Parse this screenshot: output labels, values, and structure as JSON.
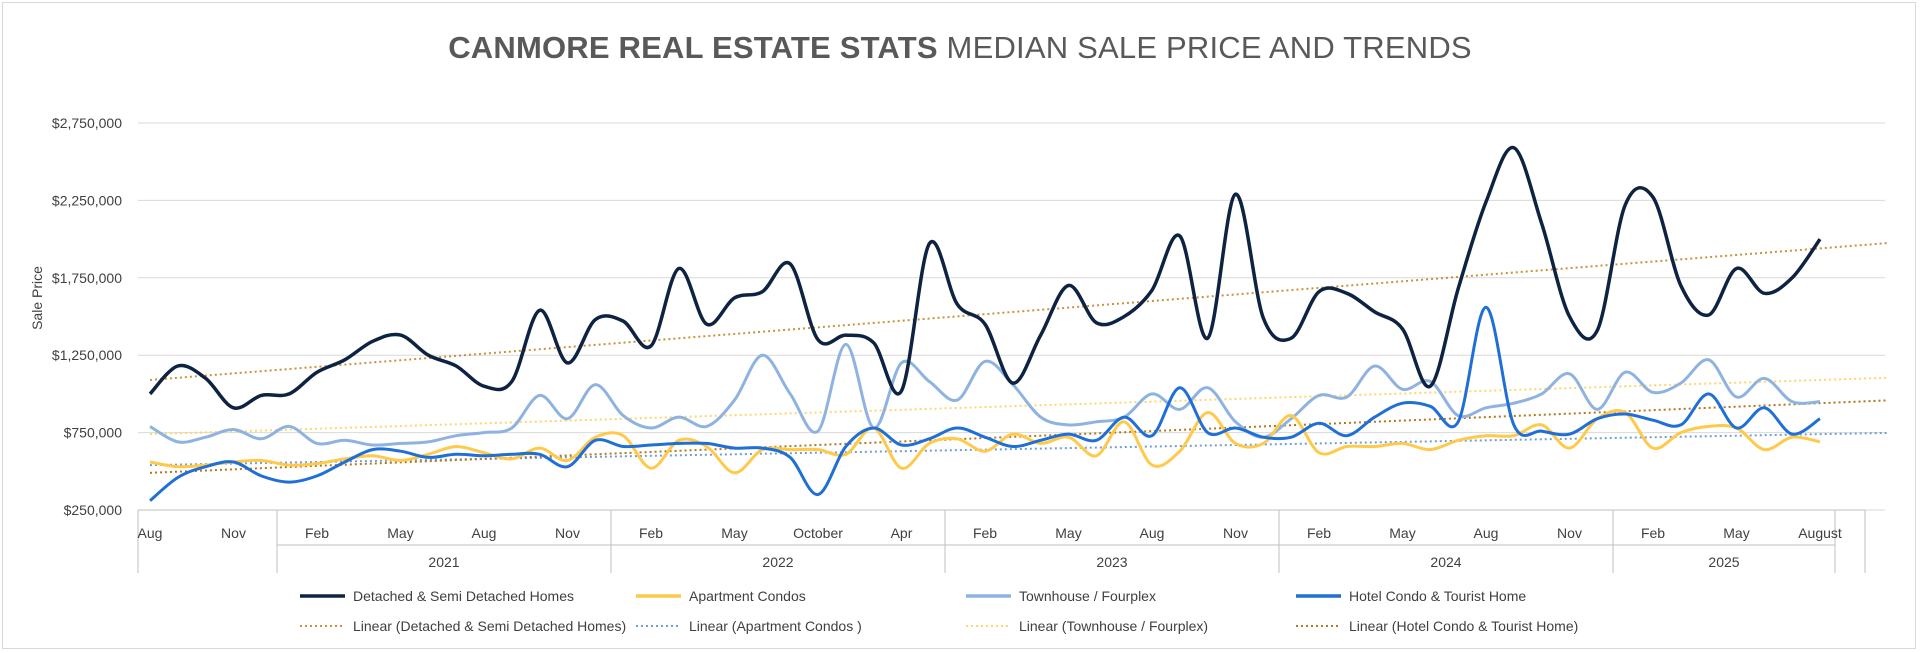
{
  "title_bold": "CANMORE REAL ESTATE STATS",
  "title_rest": "MEDIAN SALE PRICE AND TRENDS",
  "chart_data": {
    "type": "line",
    "ylabel": "Sale Price",
    "ylim": [
      250000,
      2750000
    ],
    "yticks": [
      250000,
      750000,
      1250000,
      1750000,
      2250000,
      2750000
    ],
    "ytick_labels": [
      "$250,000",
      "$750,000",
      "$1,250,000",
      "$1,750,000",
      "$2,250,000",
      "$2,750,000"
    ],
    "x_count": 61,
    "x_tick_labels": [
      {
        "i": 0,
        "label": "Aug"
      },
      {
        "i": 3,
        "label": "Nov"
      },
      {
        "i": 6,
        "label": "Feb"
      },
      {
        "i": 9,
        "label": "May"
      },
      {
        "i": 12,
        "label": "Aug"
      },
      {
        "i": 15,
        "label": "Nov"
      },
      {
        "i": 18,
        "label": "Feb"
      },
      {
        "i": 21,
        "label": "May"
      },
      {
        "i": 24,
        "label": "October"
      },
      {
        "i": 27,
        "label": "Apr"
      },
      {
        "i": 30,
        "label": "Feb"
      },
      {
        "i": 33,
        "label": "May"
      },
      {
        "i": 36,
        "label": "Aug"
      },
      {
        "i": 39,
        "label": "Nov"
      },
      {
        "i": 42,
        "label": "Feb"
      },
      {
        "i": 45,
        "label": "May"
      },
      {
        "i": 48,
        "label": "Aug"
      },
      {
        "i": 51,
        "label": "Nov"
      },
      {
        "i": 54,
        "label": "Feb"
      },
      {
        "i": 57,
        "label": "May"
      },
      {
        "i": 60,
        "label": "August"
      }
    ],
    "years": [
      {
        "label": "2021",
        "from": 5,
        "to": 16
      },
      {
        "label": "2022",
        "from": 17,
        "to": 28
      },
      {
        "label": "2023",
        "from": 29,
        "to": 40
      },
      {
        "label": "2024",
        "from": 41,
        "to": 52
      },
      {
        "label": "2025",
        "from": 53,
        "to": 60
      }
    ],
    "grid": true,
    "legend_position": "bottom",
    "series": [
      {
        "name": "Detached & Semi Detached Homes",
        "color": "#0e2341",
        "values": [
          1000000,
          1180000,
          1100000,
          910000,
          990000,
          1000000,
          1140000,
          1220000,
          1340000,
          1380000,
          1250000,
          1180000,
          1050000,
          1080000,
          1540000,
          1200000,
          1480000,
          1470000,
          1310000,
          1810000,
          1450000,
          1620000,
          1660000,
          1840000,
          1350000,
          1380000,
          1330000,
          1020000,
          1970000,
          1580000,
          1450000,
          1070000,
          1380000,
          1700000,
          1460000,
          1500000,
          1670000,
          2020000,
          1360000,
          2290000,
          1490000,
          1360000,
          1660000,
          1650000,
          1530000,
          1420000,
          1050000,
          1680000,
          2240000,
          2590000,
          2100000,
          1500000,
          1410000,
          2220000,
          2270000,
          1700000,
          1510000,
          1810000,
          1650000,
          1750000,
          2000000
        ]
      },
      {
        "name": "Apartment Condos",
        "color": "#ffc94a",
        "values": [
          560000,
          530000,
          540000,
          560000,
          570000,
          540000,
          550000,
          580000,
          600000,
          570000,
          610000,
          660000,
          620000,
          580000,
          650000,
          570000,
          720000,
          730000,
          520000,
          700000,
          660000,
          490000,
          640000,
          640000,
          640000,
          610000,
          780000,
          520000,
          680000,
          710000,
          630000,
          740000,
          680000,
          720000,
          600000,
          820000,
          540000,
          630000,
          880000,
          680000,
          680000,
          860000,
          620000,
          660000,
          660000,
          680000,
          640000,
          700000,
          730000,
          730000,
          800000,
          650000,
          840000,
          880000,
          650000,
          750000,
          790000,
          780000,
          640000,
          720000,
          690000
        ]
      },
      {
        "name": "Townhouse / Fourplex",
        "color": "#8fb3e0",
        "values": [
          790000,
          690000,
          720000,
          770000,
          710000,
          790000,
          680000,
          700000,
          670000,
          680000,
          690000,
          730000,
          750000,
          780000,
          990000,
          840000,
          1060000,
          860000,
          780000,
          850000,
          790000,
          960000,
          1250000,
          1000000,
          760000,
          1320000,
          780000,
          1200000,
          1080000,
          960000,
          1210000,
          1060000,
          850000,
          800000,
          820000,
          850000,
          1000000,
          900000,
          1040000,
          820000,
          720000,
          840000,
          990000,
          980000,
          1180000,
          1030000,
          1080000,
          860000,
          910000,
          940000,
          1000000,
          1130000,
          900000,
          1140000,
          1010000,
          1070000,
          1220000,
          980000,
          1100000,
          950000,
          950000
        ]
      },
      {
        "name": "Hotel Condo & Tourist Home",
        "color": "#1f6fd6",
        "values": [
          310000,
          460000,
          530000,
          560000,
          470000,
          430000,
          470000,
          560000,
          640000,
          630000,
          590000,
          610000,
          600000,
          610000,
          610000,
          530000,
          700000,
          660000,
          670000,
          680000,
          680000,
          650000,
          650000,
          590000,
          350000,
          660000,
          780000,
          670000,
          710000,
          780000,
          720000,
          660000,
          700000,
          740000,
          700000,
          850000,
          730000,
          1040000,
          750000,
          780000,
          720000,
          720000,
          810000,
          730000,
          850000,
          940000,
          920000,
          820000,
          1560000,
          800000,
          760000,
          740000,
          840000,
          870000,
          830000,
          800000,
          1000000,
          780000,
          910000,
          740000,
          840000
        ]
      }
    ],
    "trendlines": [
      {
        "name": "Linear (Detached & Semi Detached Homes)",
        "color": "#c9923a",
        "y_start": 1090000,
        "y_end": 1940000
      },
      {
        "name": "Linear (Apartment Condos )",
        "color": "#6f9fd8",
        "y_start": 540000,
        "y_end": 740000
      },
      {
        "name": "Linear (Townhouse / Fourplex)",
        "color": "#ffd66b",
        "y_start": 740000,
        "y_end": 1090000
      },
      {
        "name": "Linear (Hotel Condo & Tourist Home)",
        "color": "#b5771c",
        "y_start": 490000,
        "y_end": 940000
      }
    ]
  }
}
